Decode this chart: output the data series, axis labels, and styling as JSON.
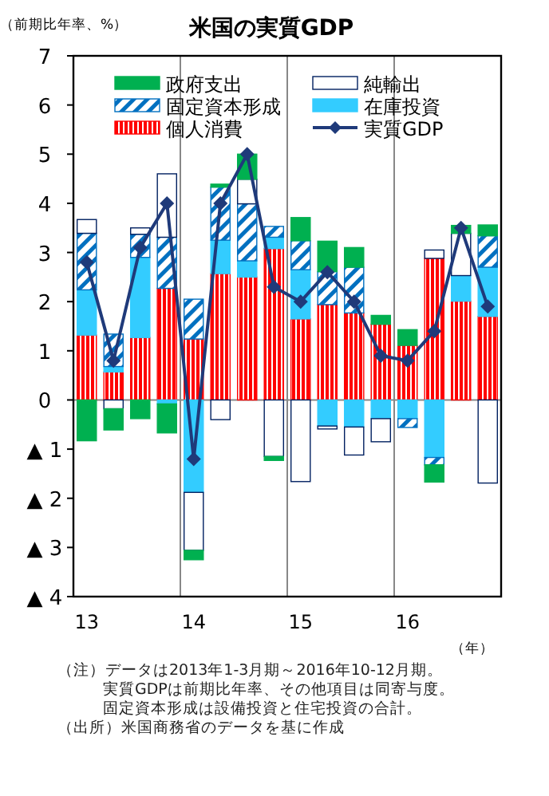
{
  "chart_data": {
    "type": "bar",
    "stacked": true,
    "title": "米国の実質GDP",
    "ylabel": "（前期比年率、%）",
    "xlabel": "（年）",
    "categories": [
      "13",
      null,
      null,
      null,
      "14",
      null,
      null,
      null,
      "15",
      null,
      null,
      null,
      "16",
      null,
      null,
      null
    ],
    "series": [
      {
        "name": "個人消費",
        "color": "#ff0000",
        "values": [
          1.32,
          0.57,
          1.27,
          2.27,
          1.24,
          2.57,
          2.5,
          3.08,
          1.65,
          1.94,
          1.77,
          1.54,
          1.11,
          2.88,
          2.01,
          1.7
        ]
      },
      {
        "name": "在庫投資",
        "color": "#33ccff",
        "values": [
          0.92,
          0.11,
          1.63,
          -0.08,
          -1.88,
          0.68,
          0.33,
          0.23,
          1.0,
          -0.53,
          -0.55,
          -0.38,
          -0.38,
          -1.17,
          0.52,
          1.0
        ]
      },
      {
        "name": "固定資本形成",
        "color": "#0070c0",
        "values": [
          1.15,
          0.66,
          0.47,
          1.04,
          0.81,
          1.08,
          1.16,
          0.22,
          0.59,
          0.67,
          0.93,
          0,
          -0.18,
          -0.15,
          0,
          0.64
        ]
      },
      {
        "name": "純輸出",
        "color": "#ffffff",
        "values": [
          0.28,
          -0.18,
          0.13,
          1.29,
          -1.18,
          -0.4,
          0.5,
          -1.15,
          -1.66,
          -0.06,
          -0.57,
          -0.47,
          0,
          0.17,
          0.86,
          -1.69
        ]
      },
      {
        "name": "政府支出",
        "color": "#00b050",
        "values": [
          -0.83,
          -0.43,
          -0.38,
          -0.59,
          -0.19,
          0.06,
          0.51,
          -0.08,
          0.47,
          0.62,
          0.4,
          0.18,
          0.32,
          -0.35,
          0.16,
          0.22
        ]
      },
      {
        "name": "実質GDP",
        "type": "line",
        "marker": "diamond",
        "line_style": "solid",
        "color": "#1f3a7a",
        "values": [
          2.8,
          0.8,
          3.1,
          4.0,
          -1.2,
          4.0,
          5.0,
          2.3,
          2.0,
          2.6,
          2.0,
          0.9,
          0.8,
          1.4,
          3.5,
          1.9
        ]
      }
    ],
    "ylim": [
      -4,
      7
    ],
    "yticks": [
      {
        "value": -4,
        "label": "▲ 4"
      },
      {
        "value": -3,
        "label": "▲ 3"
      },
      {
        "value": -2,
        "label": "▲ 2"
      },
      {
        "value": -1,
        "label": "▲ 1"
      },
      0,
      1,
      2,
      3,
      4,
      5,
      6,
      7
    ],
    "grid": "x",
    "legend": "top",
    "ref_lines": [
      {
        "axis": "y",
        "value": 0,
        "color": "#888888"
      }
    ],
    "annotations": [
      "（注）データは2013年1-3月期～2016年10-12月期。",
      "実質GDPは前期比年率、その他項目は同寄与度。",
      "固定資本形成は設備投資と住宅投資の合計。",
      "（出所）米国商務省のデータを基に作成"
    ]
  }
}
